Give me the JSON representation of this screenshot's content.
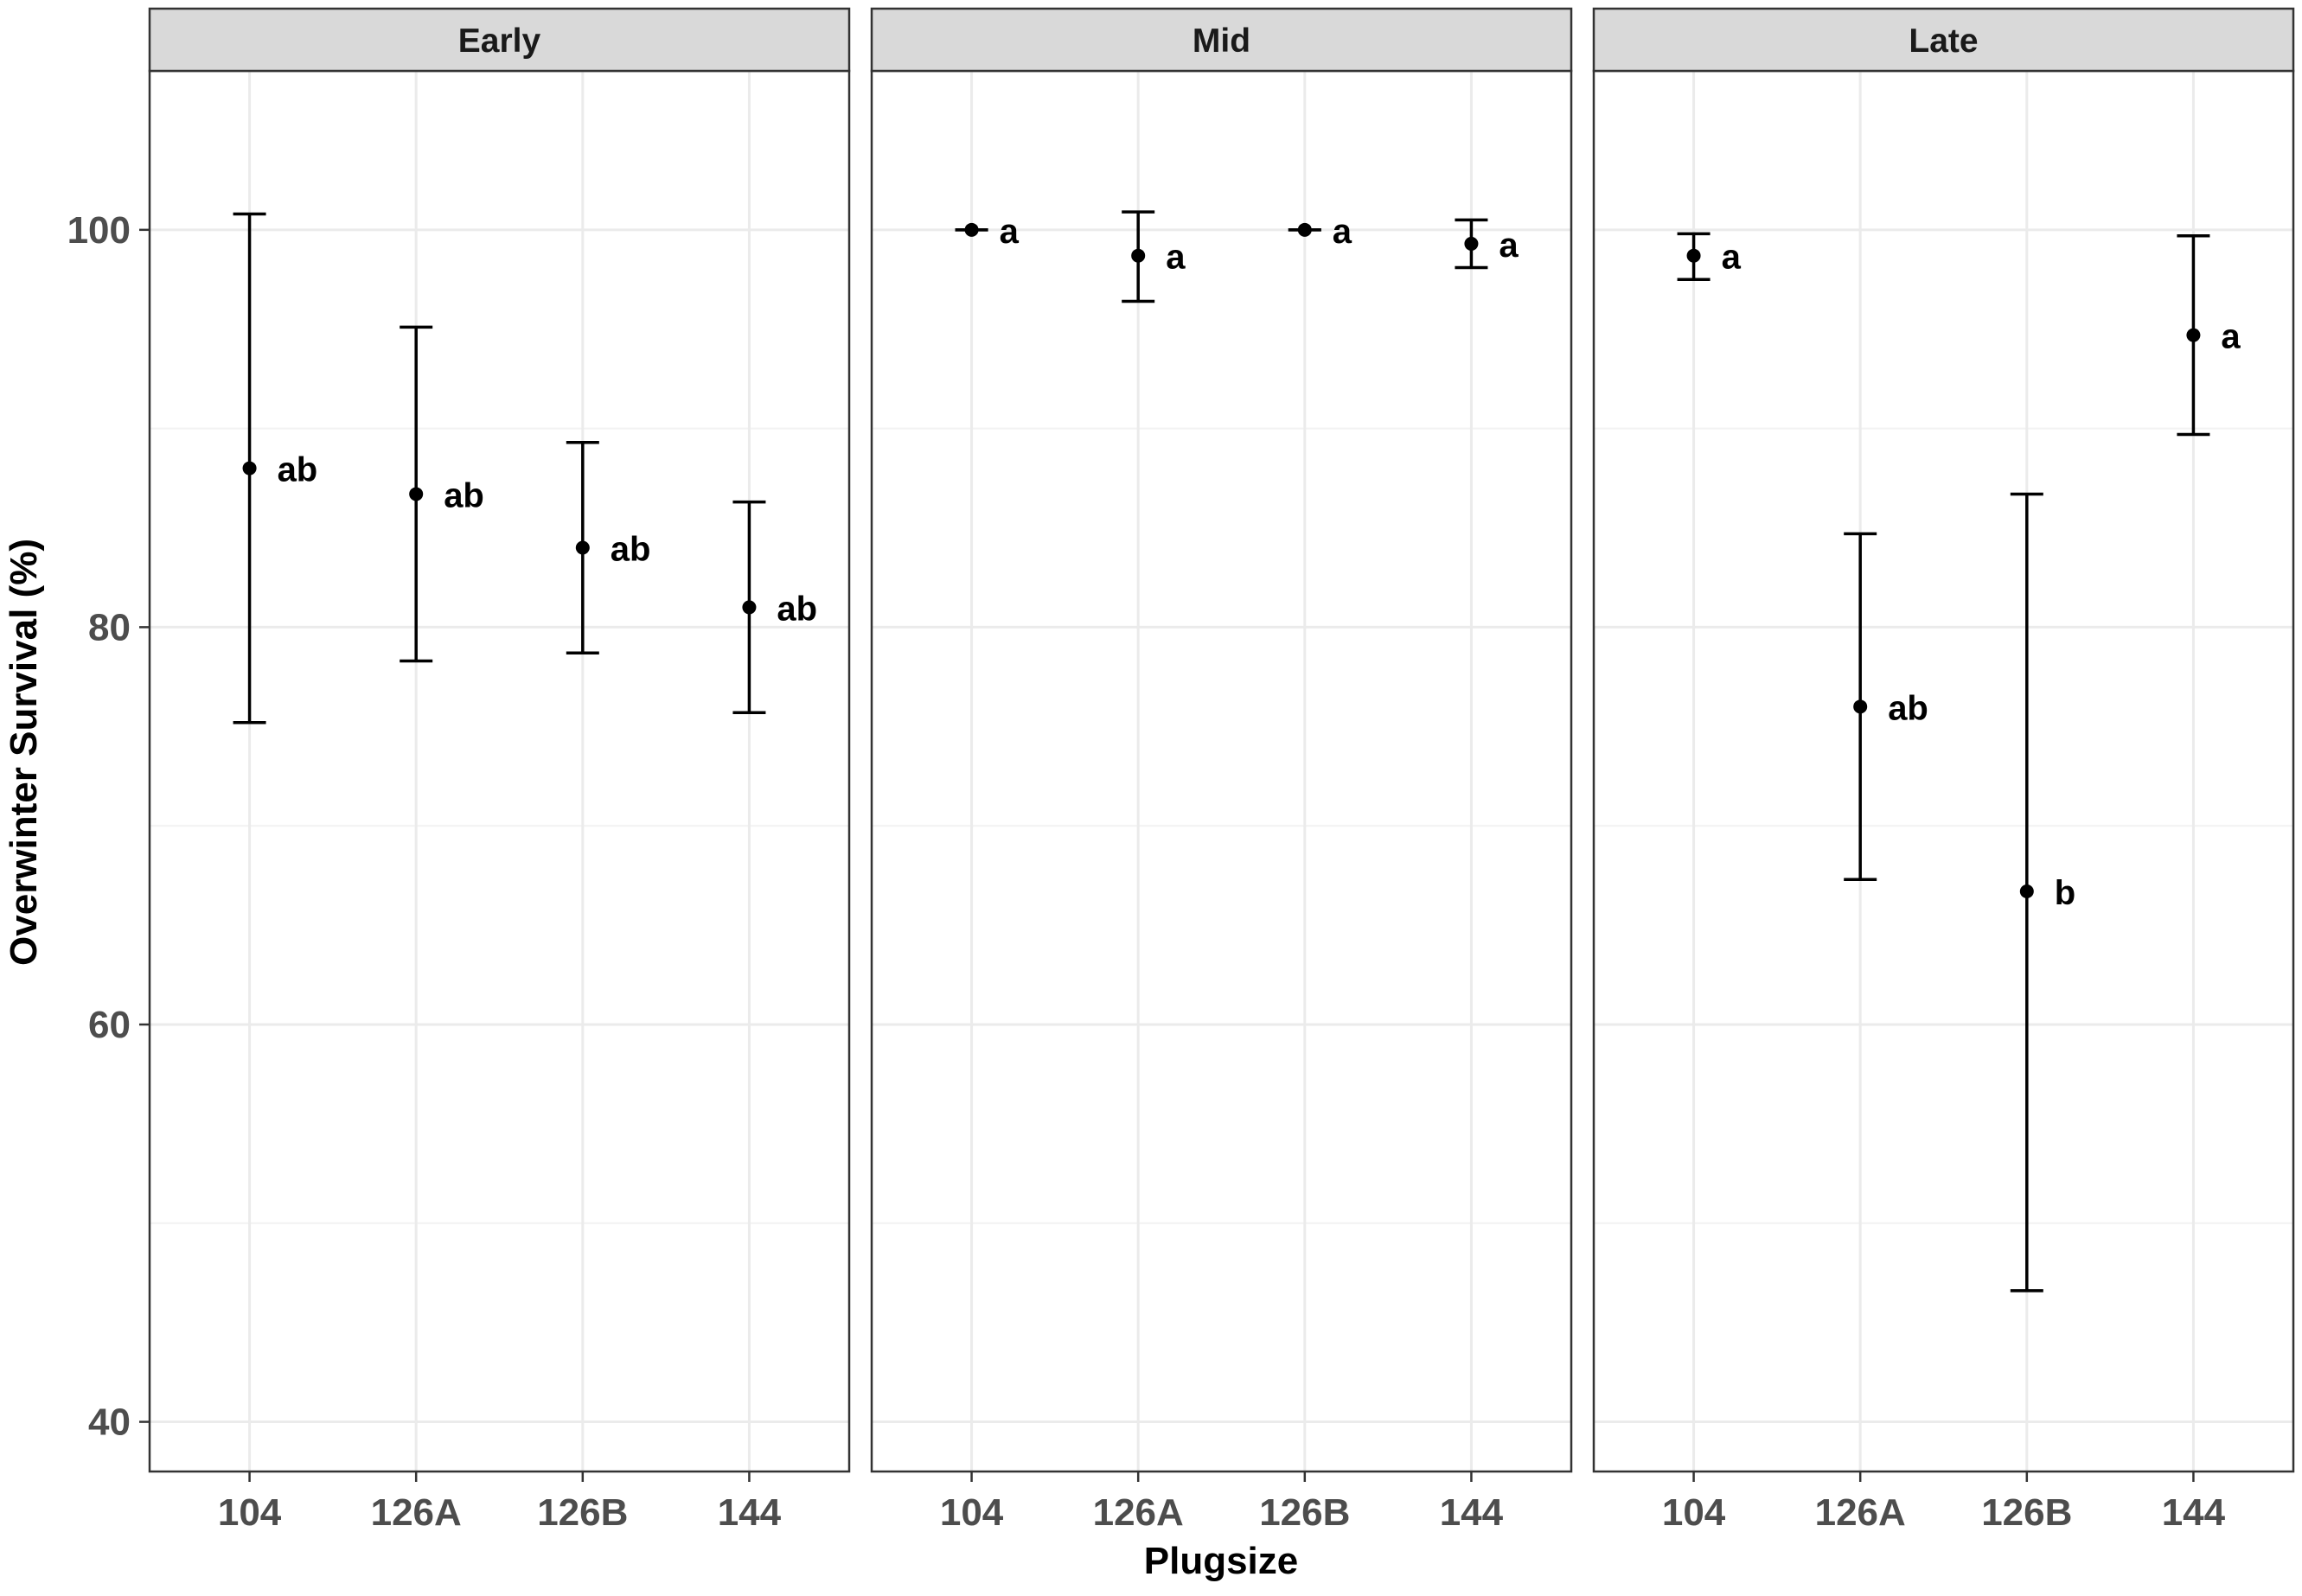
{
  "chart_data": {
    "type": "scatter",
    "subtype": "point-with-errorbars, faceted",
    "xlabel": "Plugsize",
    "ylabel": "Overwinter Survival (%)",
    "categories": [
      "104",
      "126A",
      "126B",
      "144"
    ],
    "ylim": [
      37.5,
      108
    ],
    "yticks": [
      40,
      60,
      80,
      100
    ],
    "grid": true,
    "legend": "none",
    "colors": {
      "strip_fill": "#d9d9d9",
      "grid": "#ebebeb",
      "points": "#000000",
      "panel_border": "#333333"
    },
    "facets": [
      {
        "label": "Early",
        "points": [
          {
            "x": "104",
            "y": 88.0,
            "ymin": 75.2,
            "ymax": 100.8,
            "sig": "ab"
          },
          {
            "x": "126A",
            "y": 86.7,
            "ymin": 78.3,
            "ymax": 95.1,
            "sig": "ab"
          },
          {
            "x": "126B",
            "y": 84.0,
            "ymin": 78.7,
            "ymax": 89.3,
            "sig": "ab"
          },
          {
            "x": "144",
            "y": 81.0,
            "ymin": 75.7,
            "ymax": 86.3,
            "sig": "ab"
          }
        ]
      },
      {
        "label": "Mid",
        "points": [
          {
            "x": "104",
            "y": 100.0,
            "ymin": 100.0,
            "ymax": 100.0,
            "sig": "a"
          },
          {
            "x": "126A",
            "y": 98.7,
            "ymin": 96.4,
            "ymax": 100.9,
            "sig": "a"
          },
          {
            "x": "126B",
            "y": 100.0,
            "ymin": 100.0,
            "ymax": 100.0,
            "sig": "a"
          },
          {
            "x": "144",
            "y": 99.3,
            "ymin": 98.1,
            "ymax": 100.5,
            "sig": "a"
          }
        ]
      },
      {
        "label": "Late",
        "points": [
          {
            "x": "104",
            "y": 98.7,
            "ymin": 97.5,
            "ymax": 99.8,
            "sig": "a"
          },
          {
            "x": "126A",
            "y": 76.0,
            "ymin": 67.3,
            "ymax": 84.7,
            "sig": "ab"
          },
          {
            "x": "126B",
            "y": 66.7,
            "ymin": 46.6,
            "ymax": 86.7,
            "sig": "b"
          },
          {
            "x": "144",
            "y": 94.7,
            "ymin": 89.7,
            "ymax": 99.7,
            "sig": "a"
          }
        ]
      }
    ]
  }
}
